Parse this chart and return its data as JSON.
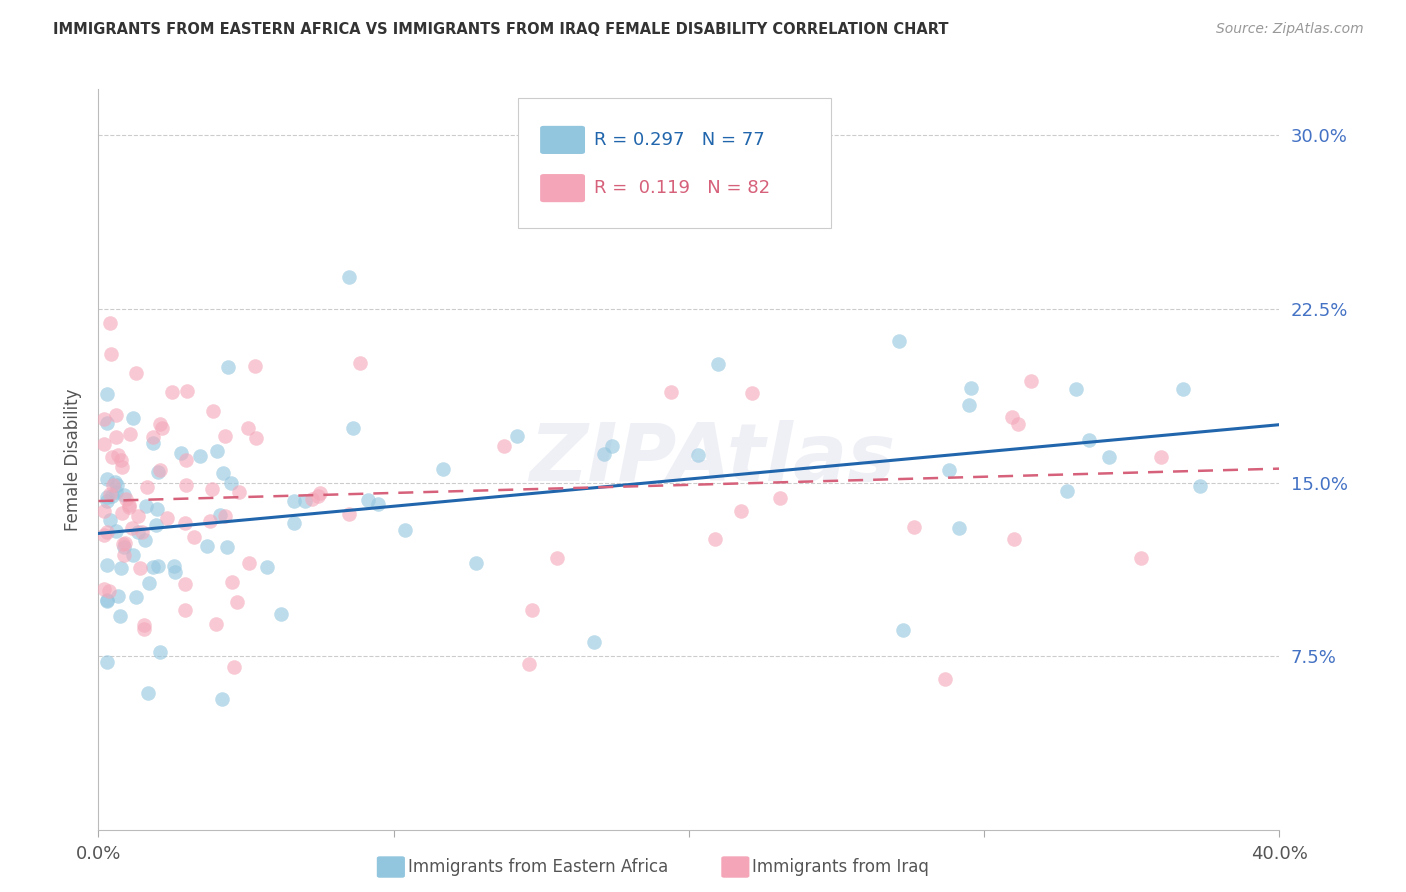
{
  "title": "IMMIGRANTS FROM EASTERN AFRICA VS IMMIGRANTS FROM IRAQ FEMALE DISABILITY CORRELATION CHART",
  "source": "Source: ZipAtlas.com",
  "ylabel": "Female Disability",
  "series1_label": "Immigrants from Eastern Africa",
  "series1_color": "#92c5de",
  "series1_line_color": "#2166ac",
  "series1_R": "0.297",
  "series1_N": "77",
  "series2_label": "Immigrants from Iraq",
  "series2_color": "#f4a6b8",
  "series2_line_color": "#d6617a",
  "series2_R": "0.119",
  "series2_N": "82",
  "xlim": [
    0.0,
    0.4
  ],
  "ylim": [
    0.0,
    0.32
  ],
  "yticks": [
    0.0,
    0.075,
    0.15,
    0.225,
    0.3
  ],
  "yticklabels_right": [
    "",
    "7.5%",
    "15.0%",
    "22.5%",
    "30.0%"
  ],
  "xtick_positions": [
    0.0,
    0.1,
    0.2,
    0.3,
    0.4
  ],
  "xtick_labels": [
    "0.0%",
    "",
    "",
    "",
    "40.0%"
  ],
  "grid_color": "#cccccc",
  "watermark_text": "ZIPAtlas",
  "background_color": "#ffffff",
  "title_color": "#333333",
  "label_color": "#555555",
  "right_tick_color": "#4472c4",
  "blue_line_start_y": 0.128,
  "blue_line_end_y": 0.175,
  "pink_line_start_y": 0.142,
  "pink_line_end_y": 0.156
}
